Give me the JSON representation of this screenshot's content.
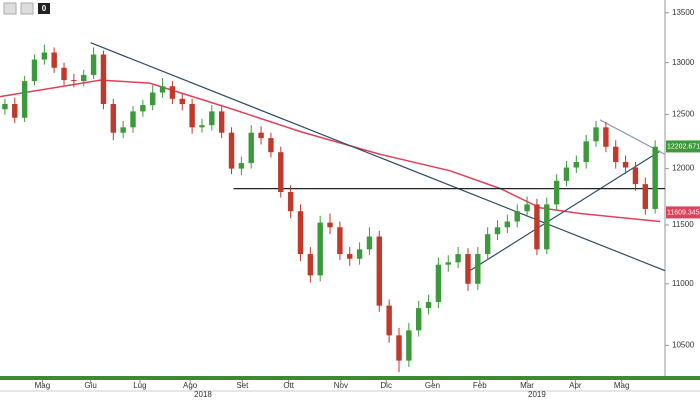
{
  "toolbar": {
    "badge": "0"
  },
  "chart_data": {
    "type": "candlestick",
    "open": [
      12550,
      12600,
      12470,
      12820,
      13030,
      13100,
      12950,
      12830,
      12820,
      12880,
      13080,
      12600,
      12330,
      12380,
      12530,
      12590,
      12710,
      12770,
      12650,
      12600,
      12380,
      12400,
      12530,
      12330,
      12000,
      12050,
      12330,
      12280,
      12150,
      11790,
      11620,
      11250,
      11070,
      11520,
      11480,
      11250,
      11210,
      11290,
      11400,
      10820,
      10580,
      10380,
      10620,
      10800,
      10850,
      11160,
      11180,
      11250,
      11000,
      11250,
      11420,
      11480,
      11530,
      11620,
      11680,
      11290,
      11680,
      11890,
      12010,
      12060,
      12250,
      12380,
      12200,
      12060,
      12010,
      11860,
      11640
    ],
    "high": [
      12650,
      12660,
      12870,
      13080,
      13180,
      13150,
      13000,
      12890,
      12930,
      13150,
      13120,
      12650,
      12440,
      12580,
      12640,
      12780,
      12850,
      12820,
      12700,
      12650,
      12460,
      12590,
      12580,
      12380,
      12110,
      12400,
      12390,
      12330,
      12200,
      11850,
      11680,
      11310,
      11580,
      11600,
      11530,
      11310,
      11350,
      11480,
      11450,
      10870,
      10640,
      10680,
      10860,
      10910,
      11220,
      11240,
      11310,
      11300,
      11310,
      11480,
      11540,
      11590,
      11680,
      11750,
      11730,
      11740,
      11950,
      12070,
      12120,
      12310,
      12440,
      12430,
      12260,
      12120,
      12060,
      11920,
      12260
    ],
    "low": [
      12500,
      12420,
      12430,
      12780,
      12980,
      12900,
      12780,
      12760,
      12770,
      12840,
      12550,
      12260,
      12280,
      12330,
      12480,
      12540,
      12660,
      12600,
      12540,
      12320,
      12330,
      12350,
      12280,
      11950,
      11940,
      12000,
      12220,
      12100,
      11740,
      11560,
      11190,
      11010,
      11020,
      11420,
      11200,
      11150,
      11160,
      11240,
      10770,
      10520,
      10290,
      10330,
      10570,
      10750,
      10800,
      11100,
      11130,
      10940,
      10950,
      11200,
      11370,
      11430,
      11480,
      11570,
      11240,
      11250,
      11630,
      11840,
      11960,
      12000,
      12200,
      12150,
      12000,
      11950,
      11800,
      11590,
      11600
    ],
    "close": [
      12600,
      12470,
      12820,
      13030,
      13100,
      12950,
      12830,
      12820,
      12880,
      13080,
      12600,
      12330,
      12380,
      12530,
      12590,
      12710,
      12770,
      12650,
      12600,
      12380,
      12400,
      12530,
      12330,
      12000,
      12050,
      12330,
      12280,
      12150,
      11790,
      11620,
      11250,
      11070,
      11520,
      11480,
      11250,
      11210,
      11290,
      11400,
      10820,
      10580,
      10380,
      10620,
      10800,
      10850,
      11160,
      11180,
      11250,
      11000,
      11250,
      11420,
      11480,
      11530,
      11620,
      11680,
      11290,
      11680,
      11890,
      12010,
      12060,
      12250,
      12380,
      12200,
      12060,
      12010,
      11860,
      11640,
      12200
    ],
    "up_color": "#3c9a3c",
    "down_color": "#c0392b",
    "moving_average": {
      "color": "#e0405a",
      "x": [
        -0.5,
        9.7,
        14.7,
        22.8,
        30,
        38.1,
        45.2,
        50.3,
        54.3,
        58.4,
        66.5
      ],
      "values": [
        12670,
        12830,
        12800,
        12560,
        12340,
        12130,
        11980,
        11820,
        11650,
        11600,
        11530
      ]
    },
    "trendlines": [
      {
        "color": "#2d4a66",
        "x": [
          8.7,
          67
        ],
        "values": [
          13197,
          11110
        ]
      },
      {
        "color": "#2d4a66",
        "x": [
          47.2,
          66.5
        ],
        "values": [
          11110,
          12160
        ]
      },
      {
        "color": "#222222",
        "x": [
          23.2,
          67
        ],
        "values": [
          11820,
          11820
        ]
      },
      {
        "color": "#8899aa",
        "x": [
          60.4,
          67
        ],
        "values": [
          12450,
          12130
        ]
      }
    ],
    "last_price": 12202.6719,
    "ma_last": 11609.3453,
    "log_scale": true,
    "grid": false,
    "xlim": [
      -0.5,
      67
    ],
    "ylim": [
      10260,
      13630
    ],
    "yticks": [
      10500,
      11000,
      11500,
      12000,
      12500,
      13000,
      13500
    ],
    "xticks": [
      {
        "value": 3.8,
        "label": "Mag"
      },
      {
        "value": 8.7,
        "label": "Giu"
      },
      {
        "value": 13.7,
        "label": "Lug"
      },
      {
        "value": 18.8,
        "label": "Ago"
      },
      {
        "value": 24.1,
        "label": "Set"
      },
      {
        "value": 28.8,
        "label": "Ott"
      },
      {
        "value": 34.1,
        "label": "Nov"
      },
      {
        "value": 38.7,
        "label": "Dic"
      },
      {
        "value": 43.4,
        "label": "Gen"
      },
      {
        "value": 48.2,
        "label": "Feb"
      },
      {
        "value": 53,
        "label": "Mar"
      },
      {
        "value": 57.9,
        "label": "Apr"
      },
      {
        "value": 62.6,
        "label": "Mag"
      }
    ],
    "year_ticks": [
      {
        "value": 20.1,
        "label": "2018"
      },
      {
        "value": 54,
        "label": "2019"
      }
    ]
  }
}
